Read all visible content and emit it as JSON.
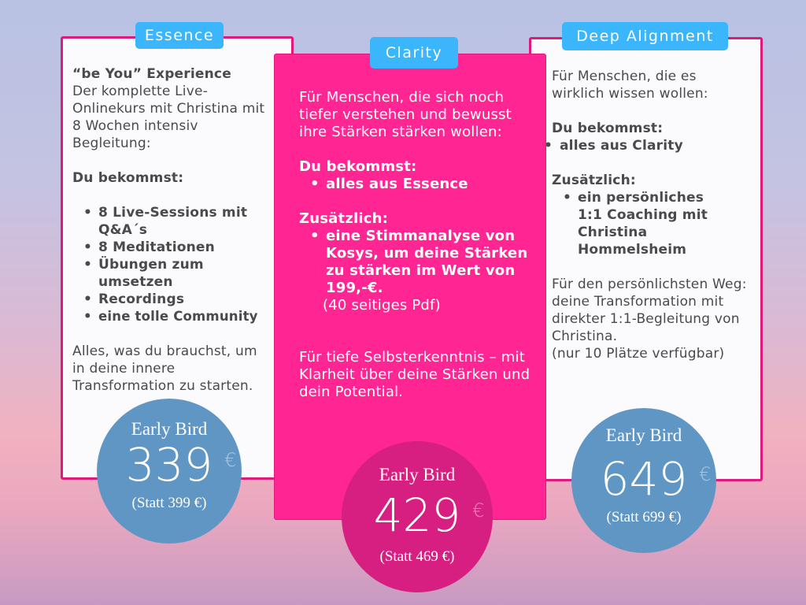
{
  "colors": {
    "card_border": "#e0197d",
    "clarity_bg": "#ff2592",
    "tag_bg": "#3bb5fb",
    "circle_blue": "#6096c4",
    "circle_pink": "#d61f80"
  },
  "plans": [
    {
      "tag": "Essence",
      "intro_bold": "“be You” Experience",
      "intro": "Der komplette Live-Onlinekurs mit Christina mit 8 Wochen intensiv Begleitung:",
      "you_get": "Du bekommst:",
      "items": [
        "8 Live-Sessions mit Q&A´s",
        "8 Meditationen",
        "Übungen zum umsetzen",
        "Recordings",
        "eine tolle Community"
      ],
      "outro": "Alles, was du brauchst, um in deine innere Transformation zu starten.",
      "early_bird": "Early Bird",
      "price": "339",
      "currency": "€",
      "old_price": "(Statt 399 €)"
    },
    {
      "tag": "Clarity",
      "intro": "Für Menschen, die sich noch tiefer verstehen und bewusst ihre Stärken stärken wollen:",
      "you_get": "Du bekommst:",
      "items": [
        "alles aus Essence"
      ],
      "extra": "Zusätzlich:",
      "extra_items": [
        "eine Stimmanalyse von Kosys, um deine Stärken zu stärken im Wert von 199,-€."
      ],
      "note": "(40 seitiges Pdf)",
      "outro": "Für tiefe Selbsterkenntnis – mit Klarheit über deine Stärken und dein Potential.",
      "early_bird": "Early Bird",
      "price": "429",
      "currency": "€",
      "old_price": "(Statt 469 €)"
    },
    {
      "tag": "Deep Alignment",
      "intro": "Für Menschen, die es wirklich wissen wollen:",
      "you_get": "Du bekommst:",
      "items": [
        "alles aus Clarity"
      ],
      "extra": "Zusätzlich:",
      "extra_items": [
        "ein persönliches 1:1 Coaching  mit Christina Hommelsheim"
      ],
      "outro": "Für den persönlichsten Weg: deine Transformation mit direkter 1:1-Begleitung von Christina.",
      "note": "(nur 10 Plätze verfügbar)",
      "early_bird": "Early Bird",
      "price": "649",
      "currency": "€",
      "old_price": "(Statt 699 €)"
    }
  ]
}
